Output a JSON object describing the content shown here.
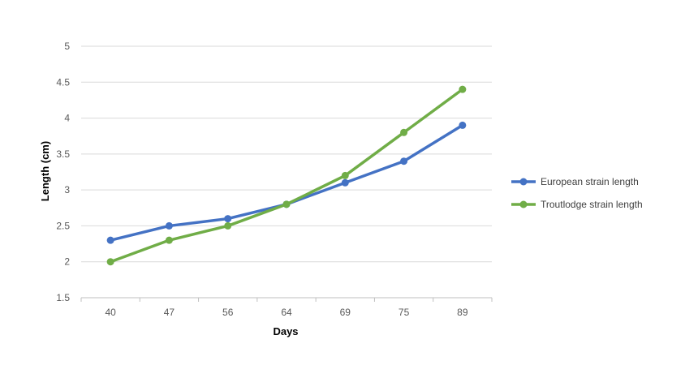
{
  "chart_data": {
    "type": "line",
    "categories": [
      "40",
      "47",
      "56",
      "64",
      "69",
      "75",
      "89"
    ],
    "series": [
      {
        "name": "European strain length",
        "color": "#4472C4",
        "values": [
          2.3,
          2.5,
          2.6,
          2.8,
          3.1,
          3.4,
          3.9
        ]
      },
      {
        "name": "Troutlodge strain length",
        "color": "#70AD47",
        "values": [
          2.0,
          2.3,
          2.5,
          2.8,
          3.2,
          3.8,
          4.4
        ]
      }
    ],
    "title": "",
    "xlabel": "Days",
    "ylabel": "Length  (cm)",
    "ylim": [
      1.5,
      5
    ],
    "yticks": [
      "1.5",
      "2",
      "2.5",
      "3",
      "3.5",
      "4",
      "4.5",
      "5"
    ],
    "grid": true,
    "legend_position": "right",
    "gridline_color": "#D9D9D9"
  }
}
